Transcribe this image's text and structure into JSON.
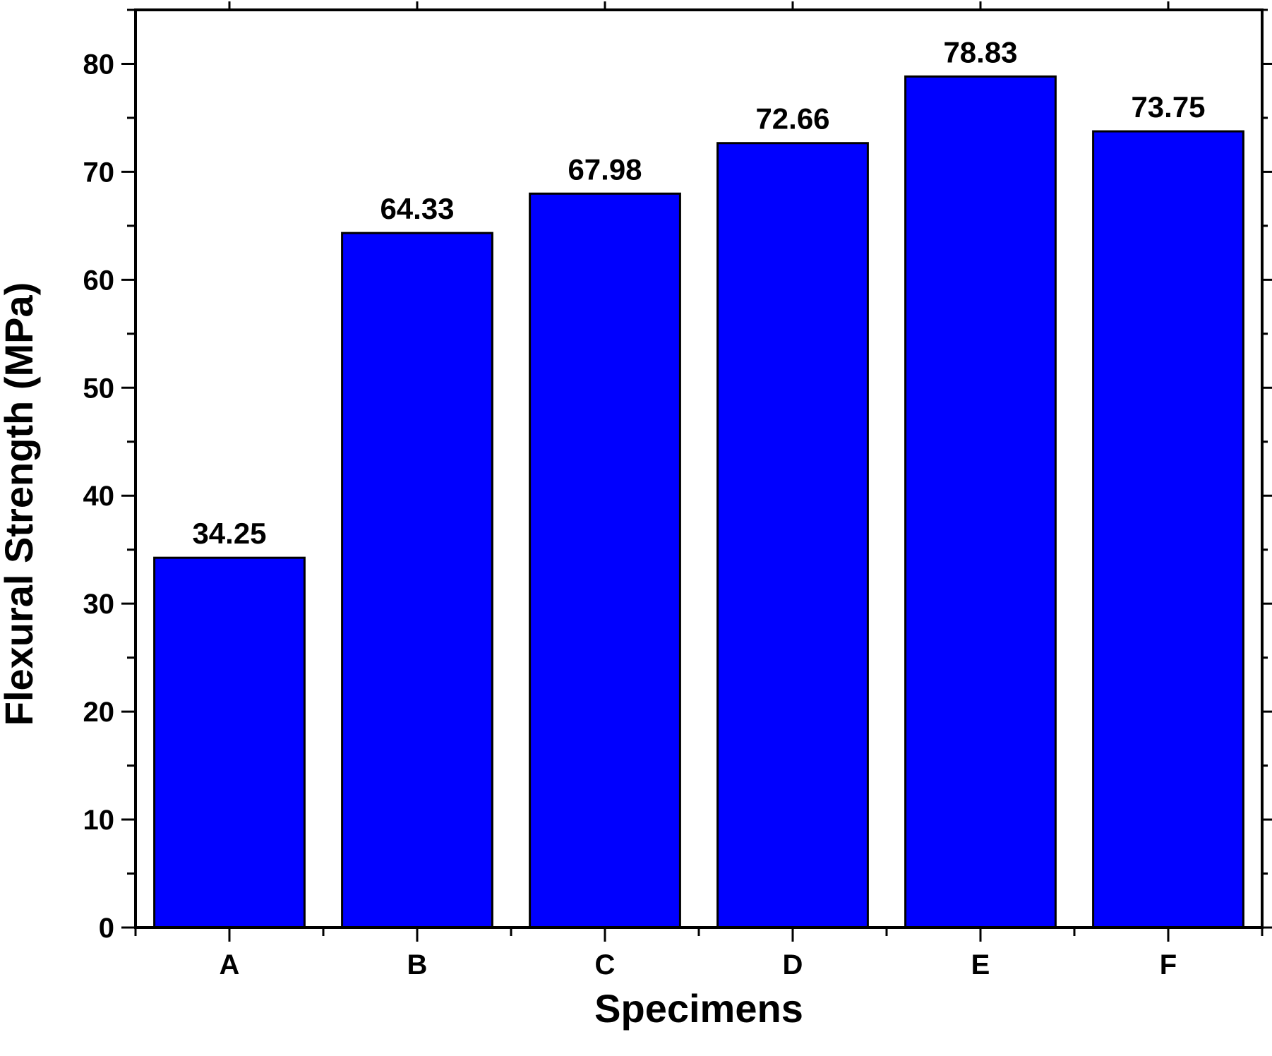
{
  "chart_data": {
    "type": "bar",
    "title": "",
    "xlabel": "Specimens",
    "ylabel": "Flexural Strength (MPa)",
    "categories": [
      "A",
      "B",
      "C",
      "D",
      "E",
      "F"
    ],
    "values": [
      34.25,
      64.33,
      67.98,
      72.66,
      78.83,
      73.75
    ],
    "value_labels": [
      "34.25",
      "64.33",
      "67.98",
      "72.66",
      "78.83",
      "73.75"
    ],
    "ylim": [
      0,
      85
    ],
    "yticks": [
      0,
      10,
      20,
      30,
      40,
      50,
      60,
      70,
      80
    ],
    "ytick_labels": [
      "0",
      "10",
      "20",
      "30",
      "40",
      "50",
      "60",
      "70",
      "80"
    ],
    "bar_color": "#0000ff",
    "grid": false,
    "legend": "none"
  }
}
